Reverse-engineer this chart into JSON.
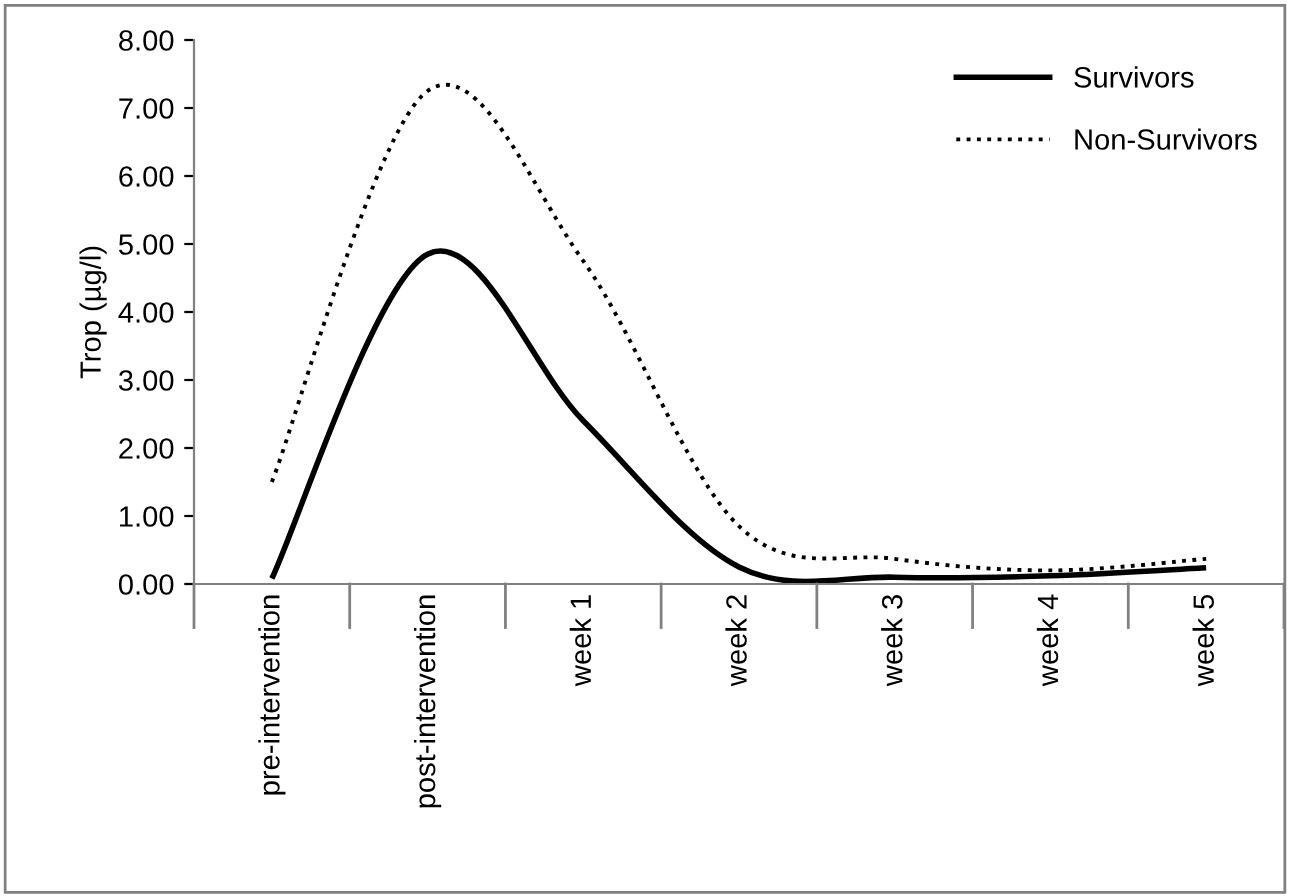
{
  "chart_data": {
    "type": "line",
    "ylabel": "Trop (µg/l)",
    "categories": [
      "pre-intervention",
      "post-intervention",
      "week 1",
      "week 2",
      "week 3",
      "week 4",
      "week 5"
    ],
    "series": [
      {
        "name": "Survivors",
        "color": "#000000",
        "line_style": "solid",
        "values": [
          0.08,
          4.85,
          2.4,
          0.25,
          0.1,
          0.12,
          0.24
        ]
      },
      {
        "name": "Non-Survivors",
        "color": "#000000",
        "line_style": "dotted",
        "values": [
          1.5,
          7.25,
          4.75,
          0.85,
          0.37,
          0.2,
          0.37
        ]
      }
    ],
    "ylim": [
      0,
      8
    ],
    "yticks": [
      {
        "value": 0,
        "label": "0.00"
      },
      {
        "value": 1,
        "label": "1.00"
      },
      {
        "value": 2,
        "label": "2.00"
      },
      {
        "value": 3,
        "label": "3.00"
      },
      {
        "value": 4,
        "label": "4.00"
      },
      {
        "value": 5,
        "label": "5.00"
      },
      {
        "value": 6,
        "label": "6.00"
      },
      {
        "value": 7,
        "label": "7.00"
      },
      {
        "value": 8,
        "label": "8.00"
      }
    ],
    "grid": false,
    "legend": "top right",
    "marker": "none"
  }
}
